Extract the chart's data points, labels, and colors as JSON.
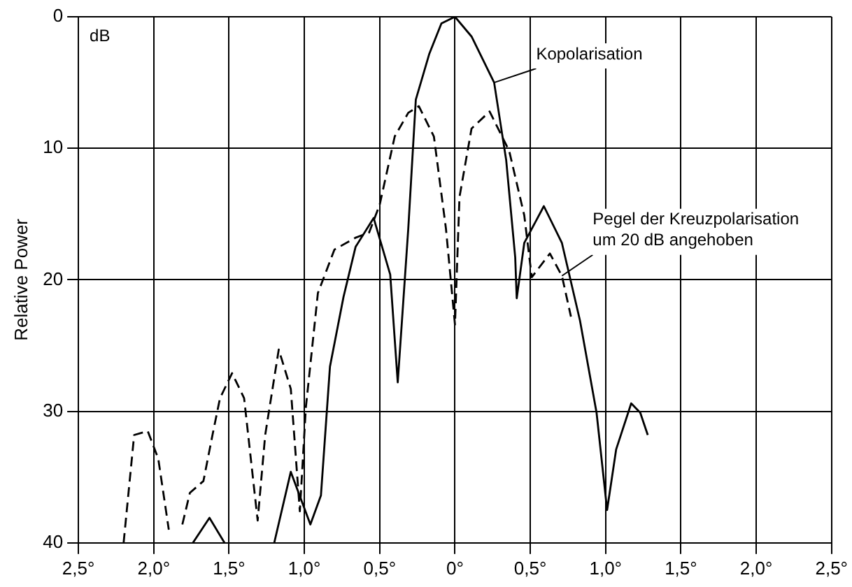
{
  "chart_data": {
    "type": "line",
    "ylabel": "Relative Power",
    "xlim": [
      -2.5,
      2.5
    ],
    "ylim": [
      40,
      0
    ],
    "xticks": [
      {
        "value": -2.5,
        "label": "2,5°"
      },
      {
        "value": -2,
        "label": "2,0°"
      },
      {
        "value": -1.5,
        "label": "1,5°"
      },
      {
        "value": -1,
        "label": "1,0°"
      },
      {
        "value": -0.5,
        "label": "0,5°"
      },
      {
        "value": 0,
        "label": "0°"
      },
      {
        "value": 0.5,
        "label": "0,5°"
      },
      {
        "value": 1,
        "label": "1,0°"
      },
      {
        "value": 1.5,
        "label": "1,5°"
      },
      {
        "value": 2,
        "label": "2,0°"
      },
      {
        "value": 2.5,
        "label": "2,5°"
      }
    ],
    "yticks": [
      0,
      10,
      20,
      30,
      40
    ],
    "grid": true,
    "legend": false,
    "marker": "none",
    "series": [
      {
        "color": "#000000",
        "line_style": "solid",
        "x": [
          -1.74,
          -1.63,
          -1.53,
          -1.36,
          -1.2,
          -1.09,
          -0.96,
          -0.89,
          -0.83,
          -0.74,
          -0.66,
          -0.54,
          -0.43,
          -0.38,
          -0.31,
          -0.26,
          -0.17,
          -0.09,
          0,
          0.11,
          0.26,
          0.34,
          0.4,
          0.41,
          0.46,
          0.59,
          0.71,
          0.83,
          0.94,
          1.01,
          1.07,
          1.17,
          1.23,
          1.28
        ],
        "values": [
          40,
          38.1,
          40,
          null,
          40,
          34.6,
          38.6,
          36.4,
          26.6,
          21.3,
          17.5,
          15.3,
          19.6,
          27.8,
          16.1,
          6.3,
          2.8,
          0.5,
          0,
          1.5,
          5,
          10.9,
          18.3,
          21.4,
          17.2,
          14.4,
          17.2,
          23.1,
          30.1,
          37.5,
          32.9,
          29.4,
          30.1,
          31.8
        ]
      },
      {
        "color": "#000000",
        "line_style": "dashed",
        "x": [
          -2.2,
          -2.13,
          -2.04,
          -1.97,
          -1.9,
          -1.85,
          -1.81,
          -1.76,
          -1.67,
          -1.61,
          -1.56,
          -1.48,
          -1.4,
          -1.31,
          -1.26,
          -1.17,
          -1.09,
          -1.03,
          -0.99,
          -0.91,
          -0.8,
          -0.66,
          -0.57,
          -0.5,
          -0.4,
          -0.31,
          -0.24,
          -0.14,
          -0.06,
          0,
          0.03,
          0.11,
          0.23,
          0.36,
          0.46,
          0.51,
          0.63,
          0.71,
          0.77
        ],
        "values": [
          40,
          31.8,
          31.5,
          33.6,
          39,
          null,
          38.6,
          36.2,
          35.3,
          31.8,
          29,
          27.1,
          29,
          38.3,
          31.8,
          25.3,
          28.3,
          37.6,
          29.7,
          21,
          17.7,
          16.8,
          16.4,
          14.3,
          9.1,
          7.3,
          6.8,
          9.1,
          16.1,
          23.4,
          13.7,
          8.5,
          7.2,
          10.2,
          15.1,
          19.8,
          18,
          19.7,
          22.8
        ]
      }
    ],
    "annotations": [
      {
        "text": "Kopolarisation",
        "x": 0.26,
        "y": 5
      },
      {
        "text": "Pegel der Kreuzpolarisation\num 20 dB angehoben",
        "x": 0.71,
        "y": 19.7
      },
      "dB"
    ]
  }
}
